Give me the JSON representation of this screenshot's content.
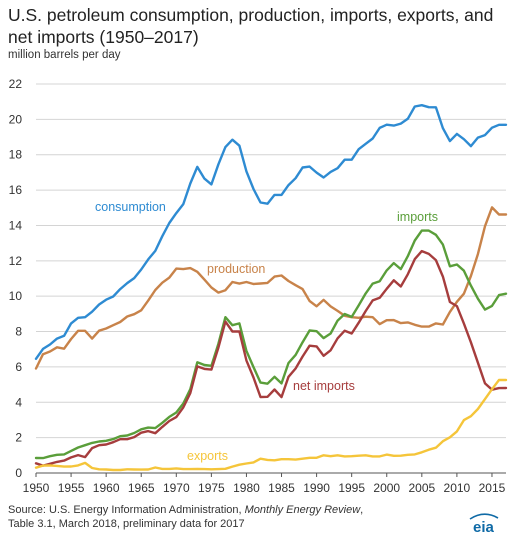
{
  "chart_data": {
    "type": "line",
    "title": "U.S. petroleum consumption, production, imports, exports, and net imports (1950–2017)",
    "units": "million barrels per day",
    "ylim": [
      0,
      22
    ],
    "yticks": [
      0,
      2,
      4,
      6,
      8,
      10,
      12,
      14,
      16,
      18,
      20,
      22
    ],
    "xlim": [
      1950,
      2017
    ],
    "xticks": [
      1950,
      1955,
      1960,
      1965,
      1970,
      1975,
      1980,
      1985,
      1990,
      1995,
      2000,
      2005,
      2010,
      2015
    ],
    "grid": "horizontal",
    "x": [
      1950,
      1951,
      1952,
      1953,
      1954,
      1955,
      1956,
      1957,
      1958,
      1959,
      1960,
      1961,
      1962,
      1963,
      1964,
      1965,
      1966,
      1967,
      1968,
      1969,
      1970,
      1971,
      1972,
      1973,
      1974,
      1975,
      1976,
      1977,
      1978,
      1979,
      1980,
      1981,
      1982,
      1983,
      1984,
      1985,
      1986,
      1987,
      1988,
      1989,
      1990,
      1991,
      1992,
      1993,
      1994,
      1995,
      1996,
      1997,
      1998,
      1999,
      2000,
      2001,
      2002,
      2003,
      2004,
      2005,
      2006,
      2007,
      2008,
      2009,
      2010,
      2011,
      2012,
      2013,
      2014,
      2015,
      2016,
      2017
    ],
    "series": [
      {
        "name": "consumption",
        "color": "#2e8bd2",
        "values": [
          6.46,
          7.02,
          7.27,
          7.6,
          7.76,
          8.46,
          8.78,
          8.81,
          9.12,
          9.53,
          9.8,
          9.98,
          10.4,
          10.74,
          11.02,
          11.51,
          12.08,
          12.56,
          13.39,
          14.14,
          14.7,
          15.21,
          16.37,
          17.31,
          16.65,
          16.32,
          17.46,
          18.43,
          18.85,
          18.51,
          17.06,
          16.06,
          15.3,
          15.23,
          15.73,
          15.73,
          16.28,
          16.67,
          17.28,
          17.33,
          16.99,
          16.71,
          17.03,
          17.24,
          17.72,
          17.72,
          18.31,
          18.62,
          18.92,
          19.52,
          19.7,
          19.65,
          19.76,
          20.03,
          20.73,
          20.8,
          20.69,
          20.68,
          19.5,
          18.77,
          19.18,
          18.88,
          18.49,
          18.97,
          19.11,
          19.53,
          19.69,
          19.69
        ]
      },
      {
        "name": "production",
        "color": "#c8834a",
        "values": [
          5.91,
          6.72,
          6.87,
          7.11,
          7.03,
          7.58,
          8.04,
          8.04,
          7.6,
          8.05,
          8.17,
          8.36,
          8.54,
          8.85,
          8.98,
          9.2,
          9.75,
          10.35,
          10.76,
          11.05,
          11.56,
          11.53,
          11.59,
          11.38,
          10.94,
          10.49,
          10.2,
          10.34,
          10.8,
          10.71,
          10.8,
          10.69,
          10.72,
          10.75,
          11.11,
          11.17,
          10.86,
          10.62,
          10.4,
          9.73,
          9.43,
          9.79,
          9.42,
          9.17,
          8.89,
          8.81,
          8.78,
          8.84,
          8.81,
          8.42,
          8.64,
          8.65,
          8.48,
          8.52,
          8.38,
          8.28,
          8.28,
          8.46,
          8.4,
          9.11,
          9.68,
          10.14,
          11.14,
          12.38,
          13.96,
          15.02,
          14.62,
          14.62
        ]
      },
      {
        "name": "imports",
        "color": "#5a9e3a",
        "values": [
          0.85,
          0.84,
          0.95,
          1.03,
          1.05,
          1.25,
          1.44,
          1.57,
          1.7,
          1.78,
          1.82,
          1.92,
          2.08,
          2.12,
          2.26,
          2.47,
          2.57,
          2.54,
          2.84,
          3.17,
          3.42,
          3.93,
          4.74,
          6.26,
          6.11,
          6.06,
          7.31,
          8.81,
          8.36,
          8.46,
          6.91,
          5.99,
          5.11,
          5.05,
          5.44,
          5.07,
          6.22,
          6.68,
          7.4,
          8.06,
          8.02,
          7.63,
          7.89,
          8.62,
          8.99,
          8.83,
          9.48,
          10.16,
          10.71,
          10.85,
          11.46,
          11.87,
          11.53,
          12.26,
          13.15,
          13.71,
          13.71,
          13.47,
          12.92,
          11.69,
          11.79,
          11.44,
          10.6,
          9.86,
          9.24,
          9.45,
          10.06,
          10.14
        ]
      },
      {
        "name": "net imports",
        "color": "#a63d3d",
        "values": [
          0.55,
          0.42,
          0.52,
          0.63,
          0.7,
          0.88,
          1.01,
          0.9,
          1.41,
          1.57,
          1.61,
          1.74,
          1.91,
          1.91,
          2.03,
          2.28,
          2.37,
          2.25,
          2.61,
          2.94,
          3.16,
          3.71,
          4.52,
          6.03,
          5.89,
          5.85,
          7.09,
          8.56,
          8.0,
          8.0,
          6.37,
          5.4,
          4.3,
          4.31,
          4.72,
          4.29,
          5.44,
          5.91,
          6.59,
          7.2,
          7.16,
          6.63,
          6.94,
          7.62,
          8.05,
          7.89,
          8.5,
          9.16,
          9.76,
          9.91,
          10.42,
          10.9,
          10.55,
          11.24,
          12.1,
          12.55,
          12.39,
          12.04,
          11.11,
          9.67,
          9.44,
          8.45,
          7.39,
          6.24,
          5.07,
          4.71,
          4.8,
          4.81
        ]
      },
      {
        "name": "exports",
        "color": "#f5c53a",
        "values": [
          0.3,
          0.42,
          0.43,
          0.4,
          0.36,
          0.37,
          0.43,
          0.57,
          0.28,
          0.21,
          0.2,
          0.17,
          0.17,
          0.21,
          0.2,
          0.19,
          0.2,
          0.31,
          0.23,
          0.23,
          0.26,
          0.22,
          0.22,
          0.23,
          0.22,
          0.21,
          0.22,
          0.24,
          0.36,
          0.47,
          0.54,
          0.6,
          0.81,
          0.74,
          0.72,
          0.78,
          0.78,
          0.76,
          0.81,
          0.86,
          0.86,
          1.0,
          0.95,
          1.0,
          0.94,
          0.95,
          0.98,
          1.0,
          0.94,
          0.94,
          1.04,
          0.97,
          0.98,
          1.03,
          1.05,
          1.17,
          1.32,
          1.43,
          1.8,
          2.02,
          2.35,
          2.99,
          3.21,
          3.62,
          4.18,
          4.74,
          5.26,
          5.26
        ]
      }
    ],
    "series_labels": {
      "consumption": "consumption",
      "production": "production",
      "imports": "imports",
      "net_imports": "net imports",
      "exports": "exports"
    }
  },
  "source_prefix": "Source: U.S. Energy Information Administration, ",
  "source_italic": "Monthly Energy Review",
  "source_suffix": ",",
  "source_line2": "Table 3.1, March 2018, preliminary data for 2017",
  "logo_text": "eia",
  "logo_color": "#0f6aa6"
}
